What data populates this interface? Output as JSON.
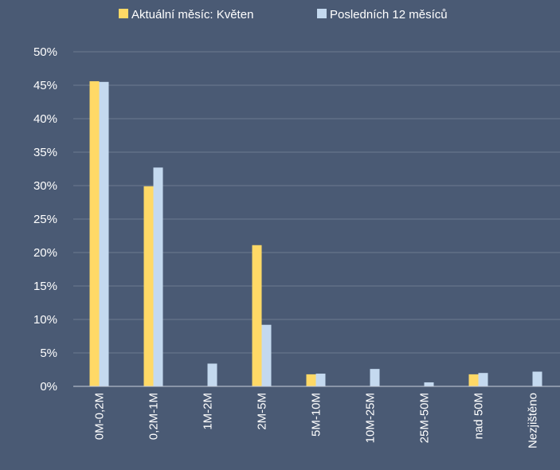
{
  "colors": {
    "background": "#4a5a74",
    "gridline": "#6c7a90",
    "axis": "#c9d0dc",
    "text": "#ffffff"
  },
  "chart_data": {
    "type": "bar",
    "title": "",
    "xlabel": "",
    "ylabel": "",
    "ylim": [
      0,
      0.5
    ],
    "y_ticks": [
      {
        "value": 0.0,
        "label": "0%"
      },
      {
        "value": 0.05,
        "label": "5%"
      },
      {
        "value": 0.1,
        "label": "10%"
      },
      {
        "value": 0.15,
        "label": "15%"
      },
      {
        "value": 0.2,
        "label": "20%"
      },
      {
        "value": 0.25,
        "label": "25%"
      },
      {
        "value": 0.3,
        "label": "30%"
      },
      {
        "value": 0.35,
        "label": "35%"
      },
      {
        "value": 0.4,
        "label": "40%"
      },
      {
        "value": 0.45,
        "label": "45%"
      },
      {
        "value": 0.5,
        "label": "50%"
      }
    ],
    "categories": [
      "0M-0,2M",
      "0,2M-1M",
      "1M-2M",
      "2M-5M",
      "5M-10M",
      "10M-25M",
      "25M-50M",
      "nad 50M",
      "Nezjištěno"
    ],
    "grid": true,
    "legend_position": "top",
    "series": [
      {
        "name": "Aktuální měsíc: Květen",
        "color": "#ffd966",
        "values": [
          0.456,
          0.299,
          0.0,
          0.211,
          0.018,
          0.0,
          0.0,
          0.018,
          0.0
        ]
      },
      {
        "name": "Posledních 12 měsíců",
        "color": "#c4d9ef",
        "values": [
          0.455,
          0.327,
          0.034,
          0.092,
          0.019,
          0.026,
          0.006,
          0.02,
          0.022
        ]
      }
    ]
  }
}
